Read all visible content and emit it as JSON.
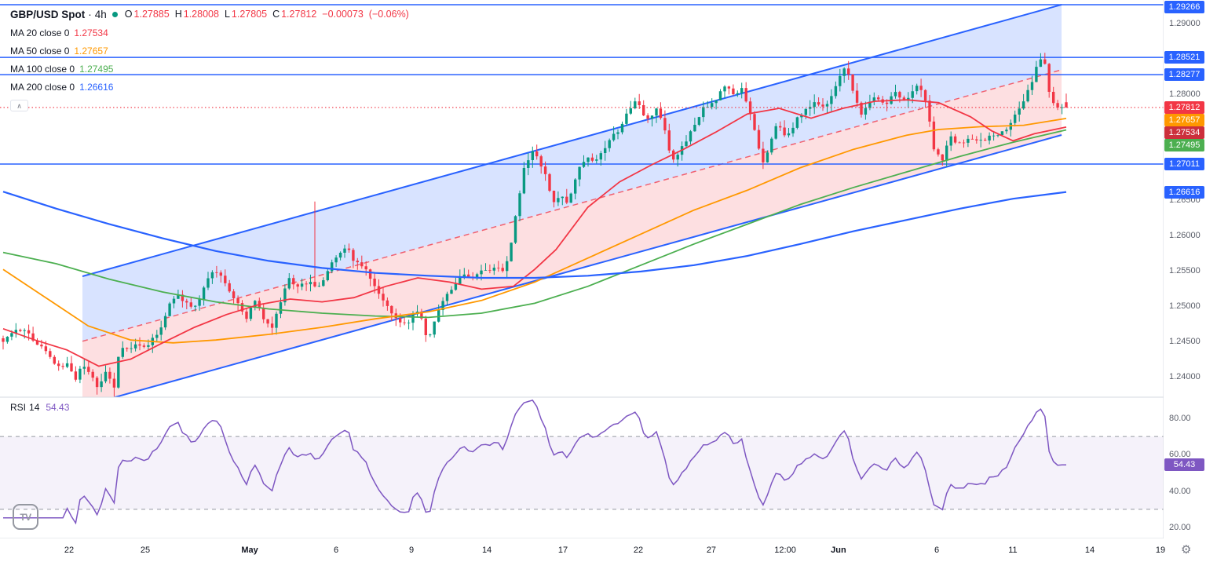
{
  "colors": {
    "up": "#089981",
    "down": "#f23645",
    "ma20": "#f23645",
    "ma50": "#ff9800",
    "ma100": "#4caf50",
    "ma200": "#2962ff",
    "channel_line": "#2962ff",
    "channel_fill_top": "rgba(41,98,255,0.18)",
    "channel_fill_bottom": "rgba(242,54,69,0.16)",
    "channel_mid": "rgba(242,54,69,0.75)",
    "level_line": "#2962ff",
    "current_price": "#f23645",
    "rsi_line": "#7e57c2",
    "rsi_band": "rgba(126,87,194,0.08)",
    "rsi_level": "#9598a1",
    "axis_text": "#5a5e69",
    "legend_text": "#131722",
    "muted": "#787b86",
    "grid_border": "#d6d9e0",
    "status_dot": "#089981"
  },
  "legend": {
    "symbol": "GBP/USD Spot",
    "sep": "·",
    "interval": "4h",
    "ohlc": [
      {
        "k": "O",
        "v": "1.27885"
      },
      {
        "k": "H",
        "v": "1.28008"
      },
      {
        "k": "L",
        "v": "1.27805"
      },
      {
        "k": "C",
        "v": "1.27812"
      }
    ],
    "change": "−0.00073",
    "change_pct": "(−0.06%)",
    "mas": [
      {
        "label": "MA 20 close 0",
        "value": "1.27534",
        "color": "#f23645"
      },
      {
        "label": "MA 50 close 0",
        "value": "1.27657",
        "color": "#ff9800"
      },
      {
        "label": "MA 100 close 0",
        "value": "1.27495",
        "color": "#4caf50"
      },
      {
        "label": "MA 200 close 0",
        "value": "1.26616",
        "color": "#2962ff"
      }
    ]
  },
  "rsi_legend": {
    "label": "RSI",
    "param": "14",
    "value": "54.43"
  },
  "icons": {
    "collapse": "∧",
    "gear": "⚙",
    "logo": "TV"
  },
  "price_axis": {
    "ticks": [
      {
        "label": "1.29000",
        "price": 1.29
      },
      {
        "label": "1.28000",
        "price": 1.28
      },
      {
        "label": "1.26500",
        "price": 1.265
      },
      {
        "label": "1.26000",
        "price": 1.26
      },
      {
        "label": "1.25500",
        "price": 1.255
      },
      {
        "label": "1.25000",
        "price": 1.25
      },
      {
        "label": "1.24500",
        "price": 1.245
      },
      {
        "label": "1.24000",
        "price": 1.24
      }
    ],
    "badges": [
      {
        "label": "1.29266",
        "price": 1.29266,
        "bg": "#2962ff"
      },
      {
        "label": "1.28521",
        "price": 1.28521,
        "bg": "#2962ff"
      },
      {
        "label": "1.28277",
        "price": 1.28277,
        "bg": "#2962ff"
      },
      {
        "label": "1.27812",
        "price": 1.27812,
        "bg": "#f23645"
      },
      {
        "label": "1.27657",
        "price": 1.27657,
        "bg": "#ff9800"
      },
      {
        "label": "1.27534",
        "price": 1.27534,
        "bg": "#cc2f3c"
      },
      {
        "label": "1.27495",
        "price": 1.27495,
        "bg": "#4caf50"
      },
      {
        "label": "1.27011",
        "price": 1.27011,
        "bg": "#2962ff"
      },
      {
        "label": "1.26616",
        "price": 1.26616,
        "bg": "#2962ff"
      }
    ]
  },
  "rsi_axis": {
    "ticks": [
      {
        "label": "80.00",
        "value": 80
      },
      {
        "label": "60.00",
        "value": 60
      },
      {
        "label": "40.00",
        "value": 40
      },
      {
        "label": "20.00",
        "value": 20
      }
    ],
    "badge": {
      "label": "54.43",
      "value": 54.43,
      "bg": "#7e57c2"
    }
  },
  "time_axis": {
    "labels": [
      {
        "label": "22",
        "f": 0.0594
      },
      {
        "label": "25",
        "f": 0.1248
      },
      {
        "label": "May",
        "f": 0.2146,
        "bold": true
      },
      {
        "label": "6",
        "f": 0.2888
      },
      {
        "label": "9",
        "f": 0.3536
      },
      {
        "label": "14",
        "f": 0.4184
      },
      {
        "label": "17",
        "f": 0.4838
      },
      {
        "label": "22",
        "f": 0.5486
      },
      {
        "label": "27",
        "f": 0.6113
      },
      {
        "label": "12:00",
        "f": 0.6748
      },
      {
        "label": "Jun",
        "f": 0.7206,
        "bold": true
      },
      {
        "label": "6",
        "f": 0.805
      },
      {
        "label": "11",
        "f": 0.8704
      },
      {
        "label": "14",
        "f": 0.9366
      },
      {
        "label": "19",
        "f": 0.9973
      }
    ]
  },
  "chart_data": {
    "type": "candlestick",
    "symbol": "GBP/USD Spot",
    "interval": "4h",
    "last_bar": {
      "open": 1.27885,
      "high": 1.28008,
      "low": 1.27805,
      "close": 1.27812,
      "change": -0.00073,
      "change_pct": -0.06
    },
    "moving_averages": {
      "ma20": 1.27534,
      "ma50": 1.27657,
      "ma100": 1.27495,
      "ma200": 1.26616
    },
    "price_levels": [
      1.29266,
      1.28521,
      1.28277,
      1.27011
    ],
    "price_range": [
      1.2375,
      1.2935
    ],
    "num_bars": 250,
    "close_path": [
      [
        0.0,
        1.2452
      ],
      [
        0.01,
        1.2462
      ],
      [
        0.02,
        1.2468
      ],
      [
        0.03,
        1.2448
      ],
      [
        0.04,
        1.2438
      ],
      [
        0.052,
        1.2412
      ],
      [
        0.06,
        1.2418
      ],
      [
        0.068,
        1.2398
      ],
      [
        0.074,
        1.242
      ],
      [
        0.082,
        1.2402
      ],
      [
        0.09,
        1.2385
      ],
      [
        0.097,
        1.2408
      ],
      [
        0.104,
        1.2382
      ],
      [
        0.11,
        1.2442
      ],
      [
        0.118,
        1.2436
      ],
      [
        0.126,
        1.245
      ],
      [
        0.134,
        1.244
      ],
      [
        0.141,
        1.2456
      ],
      [
        0.148,
        1.2466
      ],
      [
        0.155,
        1.2498
      ],
      [
        0.162,
        1.2516
      ],
      [
        0.17,
        1.2508
      ],
      [
        0.18,
        1.2495
      ],
      [
        0.19,
        1.2532
      ],
      [
        0.198,
        1.2554
      ],
      [
        0.206,
        1.2542
      ],
      [
        0.214,
        1.2518
      ],
      [
        0.222,
        1.2504
      ],
      [
        0.229,
        1.2482
      ],
      [
        0.236,
        1.251
      ],
      [
        0.244,
        1.2486
      ],
      [
        0.252,
        1.2464
      ],
      [
        0.26,
        1.2502
      ],
      [
        0.268,
        1.254
      ],
      [
        0.277,
        1.2526
      ],
      [
        0.287,
        1.2536
      ],
      [
        0.295,
        1.2524
      ],
      [
        0.305,
        1.2546
      ],
      [
        0.315,
        1.2576
      ],
      [
        0.324,
        1.2582
      ],
      [
        0.331,
        1.2562
      ],
      [
        0.34,
        1.2552
      ],
      [
        0.349,
        1.2532
      ],
      [
        0.357,
        1.2508
      ],
      [
        0.365,
        1.249
      ],
      [
        0.373,
        1.2476
      ],
      [
        0.381,
        1.2472
      ],
      [
        0.388,
        1.25
      ],
      [
        0.394,
        1.2478
      ],
      [
        0.4,
        1.245
      ],
      [
        0.408,
        1.249
      ],
      [
        0.416,
        1.2516
      ],
      [
        0.425,
        1.253
      ],
      [
        0.433,
        1.2544
      ],
      [
        0.441,
        1.2538
      ],
      [
        0.449,
        1.2554
      ],
      [
        0.456,
        1.2546
      ],
      [
        0.464,
        1.256
      ],
      [
        0.471,
        1.2548
      ],
      [
        0.478,
        1.259
      ],
      [
        0.484,
        1.2644
      ],
      [
        0.49,
        1.2696
      ],
      [
        0.497,
        1.272
      ],
      [
        0.504,
        1.2706
      ],
      [
        0.511,
        1.268
      ],
      [
        0.518,
        1.2648
      ],
      [
        0.525,
        1.266
      ],
      [
        0.532,
        1.2644
      ],
      [
        0.541,
        1.2698
      ],
      [
        0.549,
        1.271
      ],
      [
        0.557,
        1.2706
      ],
      [
        0.564,
        1.272
      ],
      [
        0.571,
        1.274
      ],
      [
        0.579,
        1.275
      ],
      [
        0.586,
        1.277
      ],
      [
        0.594,
        1.279
      ],
      [
        0.601,
        1.2776
      ],
      [
        0.608,
        1.276
      ],
      [
        0.615,
        1.278
      ],
      [
        0.622,
        1.275
      ],
      [
        0.629,
        1.2706
      ],
      [
        0.637,
        1.272
      ],
      [
        0.644,
        1.274
      ],
      [
        0.651,
        1.276
      ],
      [
        0.659,
        1.278
      ],
      [
        0.666,
        1.2786
      ],
      [
        0.674,
        1.28
      ],
      [
        0.681,
        1.2812
      ],
      [
        0.688,
        1.2796
      ],
      [
        0.695,
        1.2806
      ],
      [
        0.701,
        1.278
      ],
      [
        0.708,
        1.274
      ],
      [
        0.715,
        1.2702
      ],
      [
        0.721,
        1.273
      ],
      [
        0.728,
        1.276
      ],
      [
        0.735,
        1.274
      ],
      [
        0.741,
        1.275
      ],
      [
        0.749,
        1.277
      ],
      [
        0.756,
        1.278
      ],
      [
        0.763,
        1.2786
      ],
      [
        0.771,
        1.2782
      ],
      [
        0.779,
        1.2796
      ],
      [
        0.786,
        1.282
      ],
      [
        0.793,
        1.2844
      ],
      [
        0.8,
        1.28
      ],
      [
        0.808,
        1.277
      ],
      [
        0.816,
        1.279
      ],
      [
        0.823,
        1.2796
      ],
      [
        0.831,
        1.2786
      ],
      [
        0.839,
        1.2806
      ],
      [
        0.846,
        1.279
      ],
      [
        0.854,
        1.28
      ],
      [
        0.861,
        1.2816
      ],
      [
        0.869,
        1.2786
      ],
      [
        0.876,
        1.272
      ],
      [
        0.883,
        1.2706
      ],
      [
        0.891,
        1.274
      ],
      [
        0.898,
        1.273
      ],
      [
        0.906,
        1.2736
      ],
      [
        0.913,
        1.274
      ],
      [
        0.921,
        1.2732
      ],
      [
        0.929,
        1.2746
      ],
      [
        0.936,
        1.274
      ],
      [
        0.943,
        1.275
      ],
      [
        0.951,
        1.277
      ],
      [
        0.959,
        1.279
      ],
      [
        0.966,
        1.281
      ],
      [
        0.973,
        1.2844
      ],
      [
        0.979,
        1.2852
      ],
      [
        0.985,
        1.2794
      ],
      [
        0.991,
        1.278
      ],
      [
        1.0,
        1.27812
      ]
    ],
    "wick_events": [
      {
        "f": 0.293,
        "high": 1.2648
      },
      {
        "f": 0.977,
        "high": 1.2858
      },
      {
        "f": 0.104,
        "low": 1.2372
      }
    ],
    "ma_paths": {
      "ma20": [
        [
          0,
          1.2468
        ],
        [
          0.03,
          1.2452
        ],
        [
          0.06,
          1.2438
        ],
        [
          0.09,
          1.2415
        ],
        [
          0.12,
          1.2425
        ],
        [
          0.15,
          1.2448
        ],
        [
          0.18,
          1.247
        ],
        [
          0.21,
          1.2488
        ],
        [
          0.24,
          1.2502
        ],
        [
          0.27,
          1.251
        ],
        [
          0.3,
          1.2506
        ],
        [
          0.33,
          1.2512
        ],
        [
          0.36,
          1.2528
        ],
        [
          0.39,
          1.254
        ],
        [
          0.42,
          1.2534
        ],
        [
          0.45,
          1.2524
        ],
        [
          0.48,
          1.2528
        ],
        [
          0.5,
          1.2552
        ],
        [
          0.52,
          1.258
        ],
        [
          0.55,
          1.264
        ],
        [
          0.58,
          1.2676
        ],
        [
          0.61,
          1.27
        ],
        [
          0.64,
          1.2722
        ],
        [
          0.67,
          1.2746
        ],
        [
          0.7,
          1.2772
        ],
        [
          0.73,
          1.278
        ],
        [
          0.76,
          1.2766
        ],
        [
          0.79,
          1.278
        ],
        [
          0.82,
          1.279
        ],
        [
          0.85,
          1.2792
        ],
        [
          0.88,
          1.2788
        ],
        [
          0.91,
          1.2768
        ],
        [
          0.93,
          1.2748
        ],
        [
          0.95,
          1.2734
        ],
        [
          0.97,
          1.2744
        ],
        [
          1,
          1.27534
        ]
      ],
      "ma50": [
        [
          0,
          1.2552
        ],
        [
          0.04,
          1.2512
        ],
        [
          0.08,
          1.2472
        ],
        [
          0.12,
          1.2452
        ],
        [
          0.16,
          1.2448
        ],
        [
          0.2,
          1.2452
        ],
        [
          0.25,
          1.246
        ],
        [
          0.3,
          1.247
        ],
        [
          0.35,
          1.2482
        ],
        [
          0.4,
          1.2492
        ],
        [
          0.45,
          1.2508
        ],
        [
          0.5,
          1.2534
        ],
        [
          0.55,
          1.2568
        ],
        [
          0.6,
          1.2602
        ],
        [
          0.65,
          1.2636
        ],
        [
          0.7,
          1.2664
        ],
        [
          0.75,
          1.2696
        ],
        [
          0.8,
          1.2722
        ],
        [
          0.85,
          1.2742
        ],
        [
          0.88,
          1.275
        ],
        [
          0.92,
          1.2754
        ],
        [
          0.96,
          1.2756
        ],
        [
          1,
          1.27657
        ]
      ],
      "ma100": [
        [
          0,
          1.2576
        ],
        [
          0.05,
          1.256
        ],
        [
          0.1,
          1.2538
        ],
        [
          0.15,
          1.252
        ],
        [
          0.2,
          1.2506
        ],
        [
          0.25,
          1.2496
        ],
        [
          0.3,
          1.249
        ],
        [
          0.35,
          1.2486
        ],
        [
          0.4,
          1.2484
        ],
        [
          0.45,
          1.249
        ],
        [
          0.5,
          1.2504
        ],
        [
          0.55,
          1.2528
        ],
        [
          0.6,
          1.2558
        ],
        [
          0.65,
          1.2588
        ],
        [
          0.7,
          1.2616
        ],
        [
          0.75,
          1.2644
        ],
        [
          0.8,
          1.2668
        ],
        [
          0.85,
          1.269
        ],
        [
          0.9,
          1.2712
        ],
        [
          0.95,
          1.2732
        ],
        [
          1,
          1.27495
        ]
      ],
      "ma200": [
        [
          0,
          1.2662
        ],
        [
          0.05,
          1.2638
        ],
        [
          0.1,
          1.2616
        ],
        [
          0.15,
          1.2596
        ],
        [
          0.2,
          1.2578
        ],
        [
          0.25,
          1.2564
        ],
        [
          0.3,
          1.2554
        ],
        [
          0.35,
          1.2547
        ],
        [
          0.4,
          1.2543
        ],
        [
          0.45,
          1.254
        ],
        [
          0.5,
          1.254
        ],
        [
          0.55,
          1.2543
        ],
        [
          0.6,
          1.2549
        ],
        [
          0.65,
          1.2558
        ],
        [
          0.7,
          1.2571
        ],
        [
          0.75,
          1.2588
        ],
        [
          0.8,
          1.2606
        ],
        [
          0.85,
          1.2622
        ],
        [
          0.9,
          1.2638
        ],
        [
          0.95,
          1.2652
        ],
        [
          1,
          1.26616
        ]
      ]
    },
    "channel": {
      "x1": 0.0746,
      "x2": 0.9956,
      "top": [
        1.25422,
        1.29267
      ],
      "mid": [
        1.24503,
        1.28345
      ],
      "bottom": [
        1.23583,
        1.27422
      ]
    },
    "rsi": {
      "period": 14,
      "current": 54.43,
      "levels": [
        70,
        30
      ],
      "range": [
        20,
        80
      ]
    }
  }
}
